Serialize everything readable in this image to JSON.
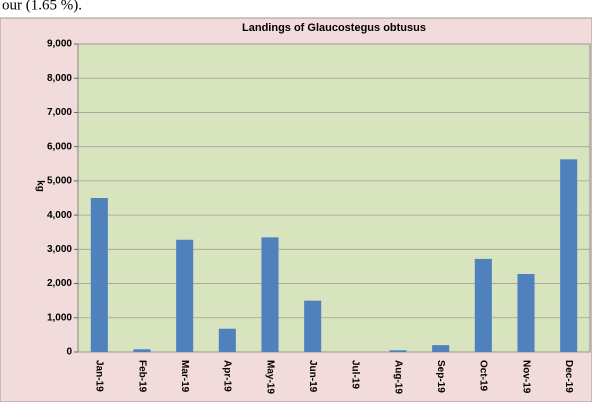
{
  "text": "our (1.65 %).",
  "chart_data": {
    "type": "bar",
    "title": "Landings of Glaucostegus obtusus",
    "y_label": "kg",
    "categories": [
      "Jan-19",
      "Feb-19",
      "Mar-19",
      "Apr-19",
      "May-19",
      "Jun-19",
      "Jul-19",
      "Aug-19",
      "Sep-19",
      "Oct-19",
      "Nov-19",
      "Dec-19"
    ],
    "values": [
      4500,
      80,
      3280,
      680,
      3350,
      1500,
      0,
      50,
      200,
      2720,
      2280,
      5630
    ],
    "color": "#4f81bd",
    "ylim": [
      0,
      9000
    ],
    "yticks": [
      0,
      {
        "value": 1000,
        "label": "1,000"
      },
      {
        "value": 2000,
        "label": "2,000"
      },
      {
        "value": 3000,
        "label": "3,000"
      },
      {
        "value": 4000,
        "label": "4,000"
      },
      {
        "value": 5000,
        "label": "5,000"
      },
      {
        "value": 6000,
        "label": "6,000"
      },
      {
        "value": 7000,
        "label": "7,000"
      },
      {
        "value": 8000,
        "label": "8,000"
      },
      {
        "value": 9000,
        "label": "9,000"
      }
    ],
    "grid": true
  }
}
